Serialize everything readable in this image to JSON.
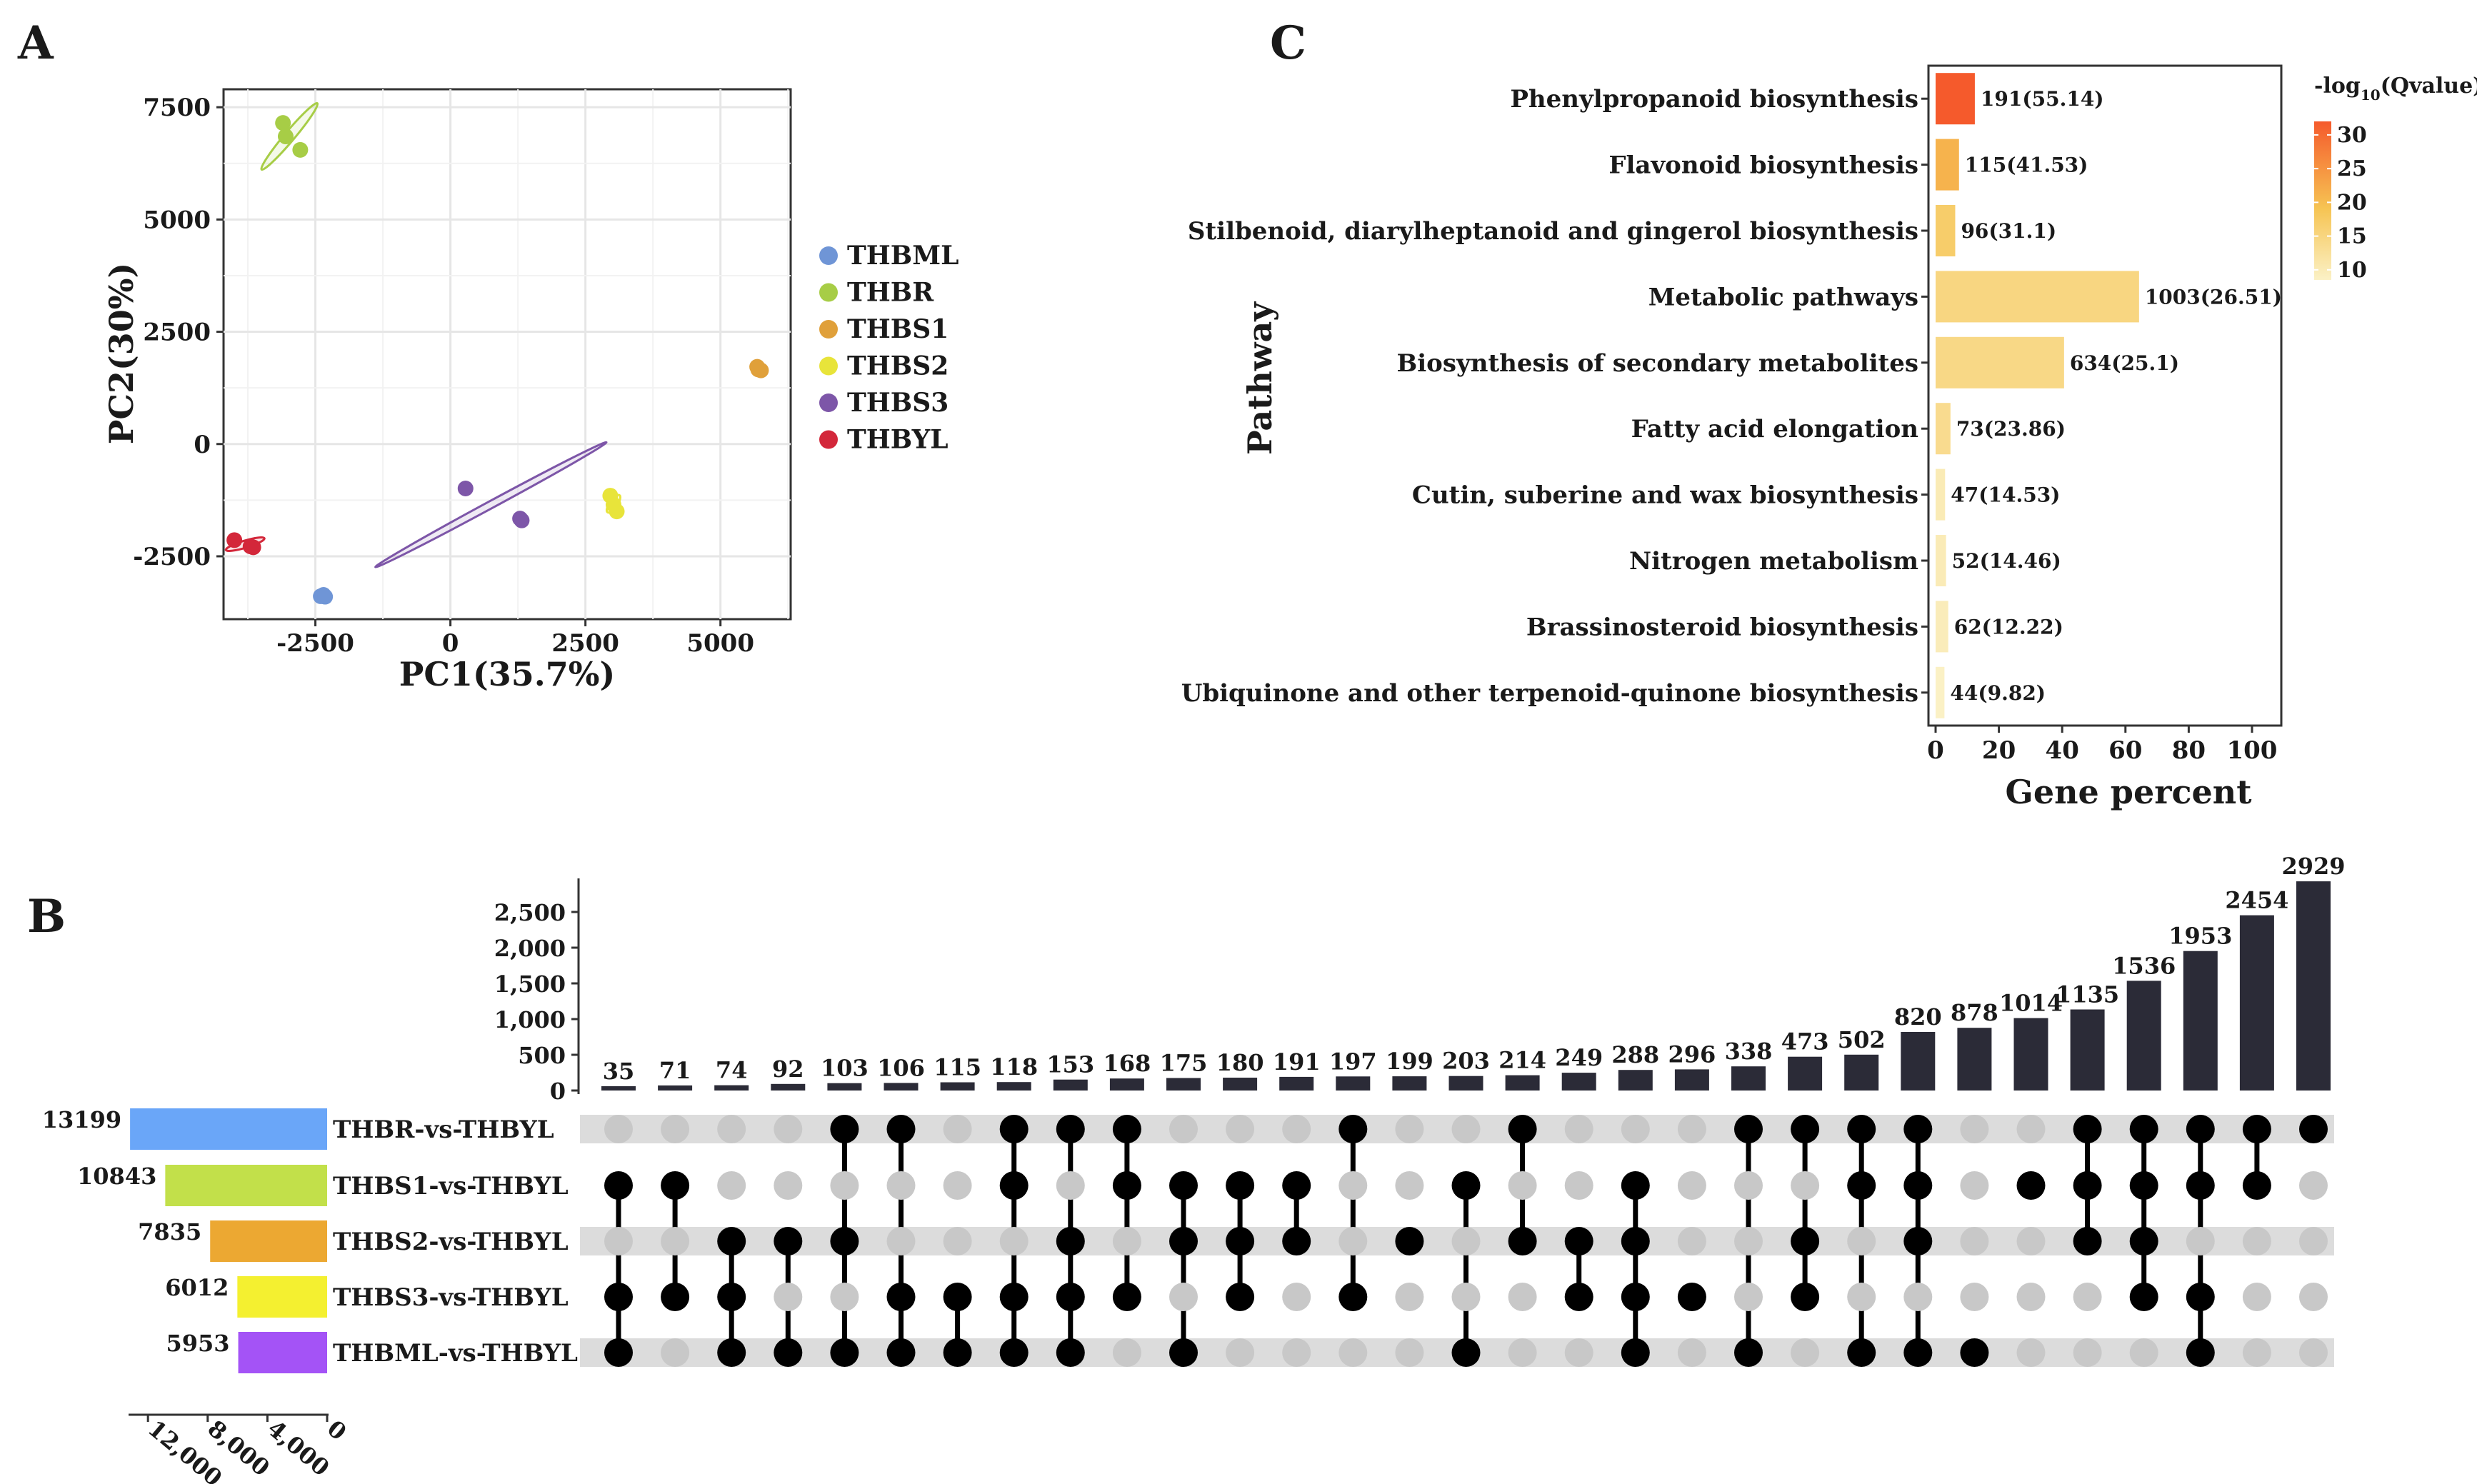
{
  "panels": {
    "a": "A",
    "b": "B",
    "c": "C"
  },
  "chart_data": [
    {
      "type": "scatter",
      "panel": "A",
      "xlabel": "PC1(35.7%)",
      "ylabel": "PC2(30%)",
      "xlim": [
        -4200,
        6300
      ],
      "ylim": [
        -3900,
        7900
      ],
      "xticks": [
        -2500,
        0,
        2500,
        5000
      ],
      "yticks": [
        -2500,
        0,
        2500,
        5000,
        7500
      ],
      "xtick_labels": [
        "-2500",
        "0",
        "2500",
        "5000"
      ],
      "ytick_labels": [
        "-2500",
        "0",
        "2500",
        "5000",
        "7500"
      ],
      "grid": true,
      "legend_position": "right",
      "series": [
        {
          "name": "THBML",
          "color": "#6f95d6",
          "points": [
            [
              -2400,
              -3390
            ],
            [
              -2350,
              -3360
            ],
            [
              -2320,
              -3400
            ]
          ]
        },
        {
          "name": "THBR",
          "color": "#a7cd46",
          "points": [
            [
              -3100,
              7150
            ],
            [
              -3050,
              6850
            ],
            [
              -2780,
              6550
            ]
          ]
        },
        {
          "name": "THBS1",
          "color": "#e0a03a",
          "points": [
            [
              5680,
              1720
            ],
            [
              5700,
              1660
            ],
            [
              5750,
              1640
            ]
          ]
        },
        {
          "name": "THBS2",
          "color": "#e8e43a",
          "points": [
            [
              2960,
              -1150
            ],
            [
              3020,
              -1350
            ],
            [
              3080,
              -1500
            ]
          ]
        },
        {
          "name": "THBS3",
          "color": "#7d56a8",
          "points": [
            [
              280,
              -990
            ],
            [
              1290,
              -1660
            ],
            [
              1320,
              -1700
            ]
          ]
        },
        {
          "name": "THBYL",
          "color": "#d3273a",
          "points": [
            [
              -4000,
              -2140
            ],
            [
              -3700,
              -2280
            ],
            [
              -3650,
              -2300
            ]
          ]
        }
      ],
      "ellipses": [
        {
          "series": "THBML",
          "cx": -2360,
          "cy": -3380,
          "rx": 120,
          "ry": 60,
          "angle": 0
        },
        {
          "series": "THBR",
          "cx": -2980,
          "cy": 6850,
          "rx": 900,
          "ry": 110,
          "angle": -55
        },
        {
          "series": "THBS1",
          "cx": 5710,
          "cy": 1675,
          "rx": 80,
          "ry": 60,
          "angle": 0
        },
        {
          "series": "THBS2",
          "cx": 3020,
          "cy": -1330,
          "rx": 220,
          "ry": 90,
          "angle": -60
        },
        {
          "series": "THBS3",
          "cx": 750,
          "cy": -1350,
          "rx": 2550,
          "ry": 80,
          "angle": -33
        },
        {
          "series": "THBYL",
          "cx": -3800,
          "cy": -2230,
          "rx": 380,
          "ry": 40,
          "angle": -20
        }
      ]
    },
    {
      "type": "upset",
      "panel": "B",
      "sets": [
        "THBR-vs-THBYL",
        "THBS1-vs-THBYL",
        "THBS2-vs-THBYL",
        "THBS3-vs-THBYL",
        "THBML-vs-THBYL"
      ],
      "set_sizes": [
        13199,
        10843,
        7835,
        6012,
        5953
      ],
      "set_colors": [
        "#6aa6f8",
        "#c2e04a",
        "#eca832",
        "#f4f030",
        "#a453f6"
      ],
      "set_size_ticks": [
        12000,
        8000,
        4000,
        0
      ],
      "set_size_tick_labels": [
        "12,000",
        "8,000",
        "4,000",
        "0"
      ],
      "intersection_ylim": [
        0,
        3000
      ],
      "intersection_yticks": [
        0,
        500,
        1000,
        1500,
        2000,
        2500
      ],
      "intersection_ytick_labels": [
        "0",
        "500",
        "1,000",
        "1,500",
        "2,000",
        "2,500"
      ],
      "intersections": [
        {
          "size": 35,
          "label": "35",
          "sets": [
            1,
            3,
            4
          ]
        },
        {
          "size": 71,
          "label": "71",
          "sets": [
            1,
            3
          ]
        },
        {
          "size": 74,
          "label": "74",
          "sets": [
            2,
            3,
            4
          ]
        },
        {
          "size": 92,
          "label": "92",
          "sets": [
            2,
            4
          ]
        },
        {
          "size": 103,
          "label": "103",
          "sets": [
            0,
            2,
            4
          ]
        },
        {
          "size": 106,
          "label": "106",
          "sets": [
            0,
            3,
            4
          ]
        },
        {
          "size": 115,
          "label": "115",
          "sets": [
            3,
            4
          ]
        },
        {
          "size": 118,
          "label": "118",
          "sets": [
            0,
            1,
            3,
            4
          ]
        },
        {
          "size": 153,
          "label": "153",
          "sets": [
            0,
            2,
            3,
            4
          ]
        },
        {
          "size": 168,
          "label": "168",
          "sets": [
            0,
            1,
            3
          ]
        },
        {
          "size": 175,
          "label": "175",
          "sets": [
            1,
            2,
            4
          ]
        },
        {
          "size": 180,
          "label": "180",
          "sets": [
            1,
            2,
            3
          ]
        },
        {
          "size": 191,
          "label": "191",
          "sets": [
            1,
            2
          ]
        },
        {
          "size": 197,
          "label": "197",
          "sets": [
            0,
            3
          ]
        },
        {
          "size": 199,
          "label": "199",
          "sets": [
            2
          ]
        },
        {
          "size": 203,
          "label": "203",
          "sets": [
            1,
            4
          ]
        },
        {
          "size": 214,
          "label": "214",
          "sets": [
            0,
            2
          ]
        },
        {
          "size": 249,
          "label": "249",
          "sets": [
            2,
            3
          ]
        },
        {
          "size": 288,
          "label": "288",
          "sets": [
            1,
            2,
            3,
            4
          ]
        },
        {
          "size": 296,
          "label": "296",
          "sets": [
            3
          ]
        },
        {
          "size": 338,
          "label": "338",
          "sets": [
            0,
            4
          ]
        },
        {
          "size": 473,
          "label": "473",
          "sets": [
            0,
            2,
            3
          ]
        },
        {
          "size": 502,
          "label": "502",
          "sets": [
            0,
            1,
            4
          ]
        },
        {
          "size": 820,
          "label": "820",
          "sets": [
            0,
            1,
            2,
            4
          ]
        },
        {
          "size": 878,
          "label": "878",
          "sets": [
            4
          ]
        },
        {
          "size": 1014,
          "label": "1014",
          "sets": [
            1
          ]
        },
        {
          "size": 1135,
          "label": "1135",
          "sets": [
            0,
            1,
            2
          ]
        },
        {
          "size": 1536,
          "label": "1536",
          "sets": [
            0,
            1,
            2,
            3
          ]
        },
        {
          "size": 1953,
          "label": "1953",
          "sets": [
            0,
            1,
            3,
            4
          ]
        },
        {
          "size": 2454,
          "label": "2454",
          "sets": [
            0,
            1
          ]
        },
        {
          "size": 2929,
          "label": "2929",
          "sets": [
            0
          ]
        }
      ]
    },
    {
      "type": "bar",
      "panel": "C",
      "orientation": "horizontal",
      "xlabel": "Gene percent",
      "ylabel": "Pathway",
      "xlim": [
        0,
        107
      ],
      "xticks": [
        0,
        20,
        40,
        60,
        80,
        100
      ],
      "xtick_labels": [
        "0",
        "20",
        "40",
        "60",
        "80",
        "100"
      ],
      "categories": [
        "Phenylpropanoid biosynthesis",
        "Flavonoid biosynthesis",
        "Stilbenoid, diarylheptanoid and gingerol biosynthesis",
        "Metabolic pathways",
        "Biosynthesis of secondary metabolites",
        "Fatty acid elongation",
        "Cutin, suberine and wax biosynthesis",
        "Nitrogen metabolism",
        "Brassinosteroid biosynthesis",
        "Ubiquinone and other terpenoid-quinone biosynthesis"
      ],
      "values": [
        12.4,
        7.4,
        6.2,
        64.3,
        40.6,
        4.7,
        3.0,
        3.3,
        4.0,
        2.8
      ],
      "bar_labels": [
        "191(55.14)",
        "115(41.53)",
        "96(31.1)",
        "1003(26.51)",
        "634(25.1)",
        "73(23.86)",
        "47(14.53)",
        "52(14.46)",
        "62(12.22)",
        "44(9.82)"
      ],
      "color_values": [
        33.5,
        21.2,
        17.0,
        14.8,
        14.4,
        13.6,
        10.0,
        9.9,
        9.6,
        8.6
      ],
      "colorbar": {
        "title_main": "-log",
        "title_sub": "10",
        "title_tail": "(Qvalue)",
        "range": [
          8.5,
          32
        ],
        "ticks": [
          10,
          15,
          20,
          25,
          30
        ],
        "tick_labels": [
          "10",
          "15",
          "20",
          "25",
          "30"
        ],
        "low_color": "#fbf1c6",
        "mid_color": "#f6c453",
        "high_color": "#f55a2c"
      }
    }
  ]
}
